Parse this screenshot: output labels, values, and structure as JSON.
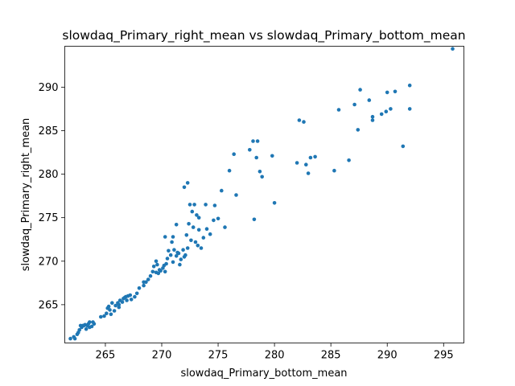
{
  "chart_data": {
    "type": "scatter",
    "title": "slowdaq_Primary_right_mean vs slowdaq_Primary_bottom_mean",
    "xlabel": "slowdaq_Primary_bottom_mean",
    "ylabel": "slowdaq_Primary_right_mean",
    "xlim": [
      261.4,
      296.8
    ],
    "ylim": [
      260.6,
      294.7
    ],
    "xticks": [
      265,
      270,
      275,
      280,
      285,
      290,
      295
    ],
    "yticks": [
      265,
      270,
      275,
      280,
      285,
      290
    ],
    "grid": false,
    "legend": "none",
    "marker_color": "#1f77b4",
    "points": [
      [
        261.9,
        261.1
      ],
      [
        262.3,
        261.1
      ],
      [
        262.5,
        261.6
      ],
      [
        262.6,
        261.8
      ],
      [
        262.7,
        262.1
      ],
      [
        262.9,
        262.4
      ],
      [
        263.0,
        262.6
      ],
      [
        263.1,
        262.6
      ],
      [
        263.2,
        262.7
      ],
      [
        263.4,
        262.6
      ],
      [
        263.5,
        262.8
      ],
      [
        263.6,
        263.0
      ],
      [
        263.6,
        262.4
      ],
      [
        263.8,
        262.5
      ],
      [
        264.0,
        262.8
      ],
      [
        263.3,
        262.2
      ],
      [
        262.8,
        262.6
      ],
      [
        264.6,
        263.6
      ],
      [
        265.1,
        264.0
      ],
      [
        265.2,
        264.6
      ],
      [
        265.3,
        264.8
      ],
      [
        265.4,
        264.4
      ],
      [
        265.5,
        263.9
      ],
      [
        265.8,
        264.3
      ],
      [
        265.9,
        264.9
      ],
      [
        266.1,
        265.2
      ],
      [
        266.2,
        264.7
      ],
      [
        266.3,
        265.5
      ],
      [
        266.5,
        265.3
      ],
      [
        266.6,
        265.7
      ],
      [
        266.8,
        265.9
      ],
      [
        266.9,
        265.5
      ],
      [
        267.0,
        266.0
      ],
      [
        267.3,
        265.6
      ],
      [
        267.6,
        265.9
      ],
      [
        266.2,
        265.0
      ],
      [
        267.8,
        266.3
      ],
      [
        266.7,
        265.8
      ],
      [
        267.2,
        266.1
      ],
      [
        268.0,
        266.9
      ],
      [
        268.4,
        267.2
      ],
      [
        268.6,
        267.6
      ],
      [
        268.8,
        267.9
      ],
      [
        269.0,
        268.3
      ],
      [
        269.2,
        268.8
      ],
      [
        269.3,
        269.4
      ],
      [
        269.5,
        270.0
      ],
      [
        269.5,
        268.7
      ],
      [
        269.7,
        268.6
      ],
      [
        269.9,
        268.9
      ],
      [
        270.1,
        269.2
      ],
      [
        270.2,
        269.5
      ],
      [
        270.3,
        268.8
      ],
      [
        270.4,
        269.7
      ],
      [
        270.5,
        270.3
      ],
      [
        270.6,
        271.2
      ],
      [
        270.8,
        270.7
      ],
      [
        270.9,
        272.2
      ],
      [
        271.0,
        269.9
      ],
      [
        271.1,
        271.3
      ],
      [
        271.3,
        270.6
      ],
      [
        271.3,
        274.2
      ],
      [
        271.5,
        270.9
      ],
      [
        271.6,
        269.6
      ],
      [
        271.7,
        270.2
      ],
      [
        271.9,
        271.3
      ],
      [
        272.0,
        270.5
      ],
      [
        272.1,
        270.7
      ],
      [
        272.2,
        273.0
      ],
      [
        272.3,
        271.5
      ],
      [
        272.4,
        274.3
      ],
      [
        272.5,
        276.5
      ],
      [
        272.6,
        272.4
      ],
      [
        272.7,
        275.7
      ],
      [
        272.8,
        273.9
      ],
      [
        272.9,
        276.5
      ],
      [
        273.0,
        272.2
      ],
      [
        273.1,
        275.3
      ],
      [
        273.2,
        271.8
      ],
      [
        273.3,
        273.6
      ],
      [
        273.5,
        271.5
      ],
      [
        273.7,
        272.7
      ],
      [
        273.9,
        276.5
      ],
      [
        274.0,
        273.7
      ],
      [
        274.3,
        273.1
      ],
      [
        274.6,
        274.7
      ],
      [
        274.7,
        276.4
      ],
      [
        275.0,
        274.9
      ],
      [
        275.3,
        278.1
      ],
      [
        275.6,
        273.9
      ],
      [
        276.0,
        280.4
      ],
      [
        276.4,
        282.3
      ],
      [
        276.6,
        277.6
      ],
      [
        270.3,
        272.8
      ],
      [
        272.0,
        278.5
      ],
      [
        272.3,
        279.0
      ],
      [
        271.0,
        272.8
      ],
      [
        271.4,
        271.0
      ],
      [
        268.4,
        267.6
      ],
      [
        269.8,
        269.0
      ],
      [
        277.8,
        282.8
      ],
      [
        278.1,
        283.8
      ],
      [
        278.4,
        281.9
      ],
      [
        278.5,
        283.8
      ],
      [
        278.7,
        280.3
      ],
      [
        278.9,
        279.7
      ],
      [
        279.8,
        282.1
      ],
      [
        280.0,
        276.7
      ],
      [
        278.2,
        274.8
      ],
      [
        282.0,
        281.3
      ],
      [
        282.2,
        286.2
      ],
      [
        282.6,
        286.0
      ],
      [
        282.8,
        281.1
      ],
      [
        283.0,
        280.1
      ],
      [
        283.2,
        281.9
      ],
      [
        283.6,
        282.0
      ],
      [
        285.3,
        280.4
      ],
      [
        285.7,
        287.4
      ],
      [
        286.6,
        281.6
      ],
      [
        287.1,
        288.0
      ],
      [
        287.4,
        285.1
      ],
      [
        287.6,
        289.7
      ],
      [
        288.4,
        288.5
      ],
      [
        288.7,
        286.6
      ],
      [
        288.7,
        286.2
      ],
      [
        289.5,
        286.9
      ],
      [
        289.9,
        287.2
      ],
      [
        290.0,
        289.4
      ],
      [
        290.3,
        287.5
      ],
      [
        290.7,
        289.5
      ],
      [
        291.4,
        283.2
      ],
      [
        292.0,
        290.2
      ],
      [
        292.0,
        287.5
      ],
      [
        295.8,
        294.4
      ],
      [
        273.3,
        275.0
      ],
      [
        262.2,
        261.3
      ],
      [
        263.9,
        263.0
      ],
      [
        264.9,
        263.7
      ],
      [
        265.6,
        265.2
      ],
      [
        269.6,
        269.6
      ]
    ]
  }
}
